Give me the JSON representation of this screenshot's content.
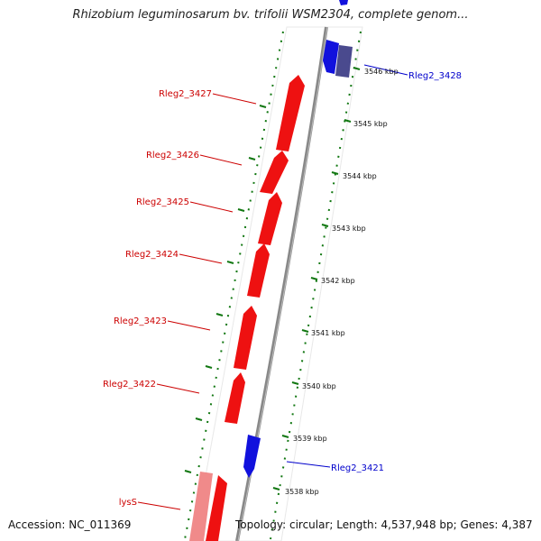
{
  "title": "Rhizobium leguminosarum bv. trifolii WSM2304, complete genom...",
  "footer": {
    "accession": "Accession: NC_011369",
    "topology": "Topology: circular; Length: 4,537,948 bp; Genes: 4,387"
  },
  "colors": {
    "forward_gene": "#ee1111",
    "forward_gene_light": "#f08a8a",
    "reverse_gene": "#1111dd",
    "reverse_gene_dark": "#4a4a8e",
    "dotted_track": "#117711",
    "backbone": "#888888",
    "label_red": "#cc0000",
    "label_blue": "#0000cc"
  },
  "ticks": [
    "3546 kbp",
    "3545 kbp",
    "3544 kbp",
    "3543 kbp",
    "3542 kbp",
    "3541 kbp",
    "3540 kbp",
    "3539 kbp",
    "3538 kbp"
  ],
  "genes": [
    {
      "label": "Rleg2_3428",
      "strand": "reverse",
      "shade": "dark"
    },
    {
      "label": "Rleg2_3427",
      "strand": "forward"
    },
    {
      "label": "Rleg2_3426",
      "strand": "forward"
    },
    {
      "label": "Rleg2_3425",
      "strand": "forward"
    },
    {
      "label": "Rleg2_3424",
      "strand": "forward"
    },
    {
      "label": "Rleg2_3423",
      "strand": "forward"
    },
    {
      "label": "Rleg2_3422",
      "strand": "forward"
    },
    {
      "label": "Rleg2_3421",
      "strand": "reverse"
    },
    {
      "label": "lysS",
      "strand": "forward",
      "shade": "light"
    }
  ]
}
